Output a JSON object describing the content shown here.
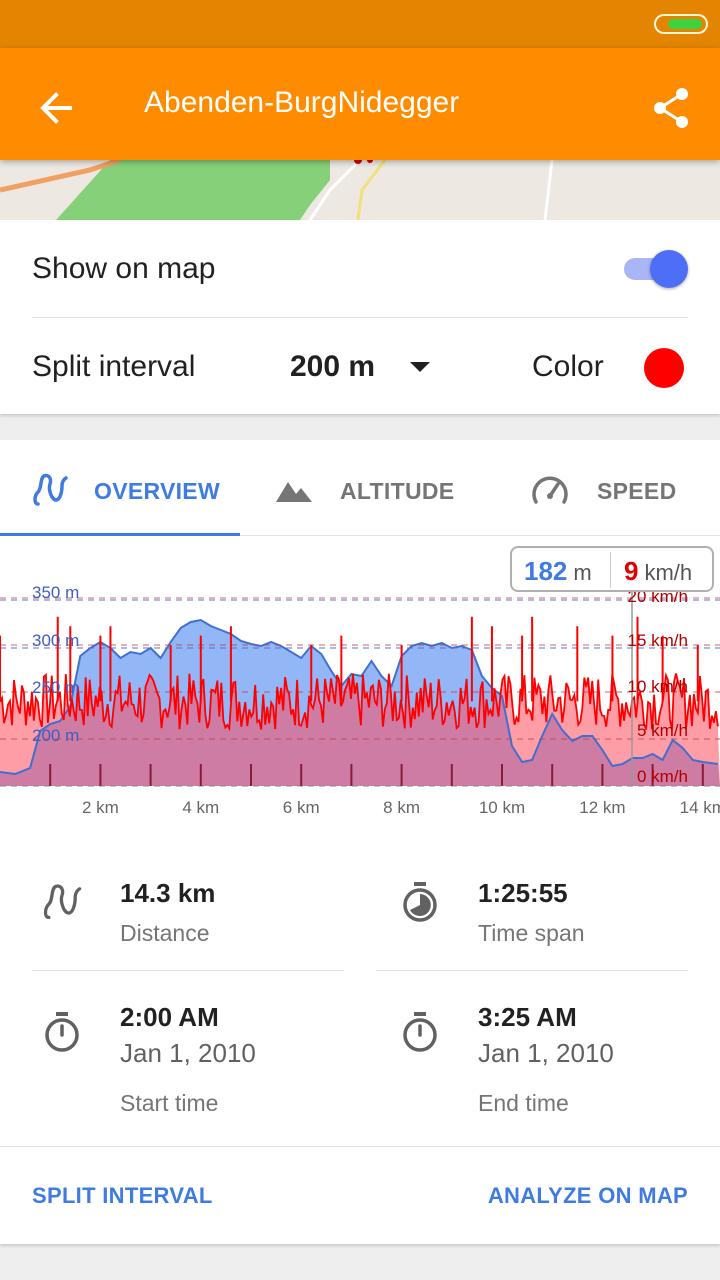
{
  "toolbar": {
    "title": "Abenden-BurgNidegger",
    "back_icon": "arrow-back-icon",
    "share_icon": "share-icon"
  },
  "settings": {
    "show_on_map_label": "Show on map",
    "show_on_map_enabled": true,
    "split_interval_label": "Split interval",
    "split_interval_value": "200 m",
    "color_label": "Color",
    "color_value": "#ff0000"
  },
  "tabs": [
    {
      "label": "OVERVIEW",
      "icon": "route-icon",
      "active": true
    },
    {
      "label": "ALTITUDE",
      "icon": "mountain-icon",
      "active": false
    },
    {
      "label": "SPEED",
      "icon": "speedometer-icon",
      "active": false
    }
  ],
  "readout": {
    "altitude_value": "182",
    "altitude_unit": "m",
    "speed_value": "9",
    "speed_unit": "km/h"
  },
  "chart_data": {
    "type": "area",
    "x_unit": "km",
    "x_range": [
      0,
      14.3
    ],
    "x_ticks": [
      "2 km",
      "4 km",
      "6 km",
      "8 km",
      "10 km",
      "12 km",
      "14 km"
    ],
    "y_left_ticks": [
      "350 m",
      "300 m",
      "250 m",
      "200 m"
    ],
    "y_right_ticks": [
      "20 km/h",
      "15 km/h",
      "10 km/h",
      "5 km/h",
      "0 km/h"
    ],
    "altitude_range": [
      160,
      360
    ],
    "speed_range": [
      0,
      20
    ],
    "altitude_color": "#5b8ff0",
    "speed_color": "#ff0000",
    "altitude": [
      [
        0,
        174
      ],
      [
        0.3,
        172
      ],
      [
        0.6,
        178
      ],
      [
        0.8,
        215
      ],
      [
        1.0,
        222
      ],
      [
        1.2,
        225
      ],
      [
        1.4,
        240
      ],
      [
        1.6,
        290
      ],
      [
        1.8,
        298
      ],
      [
        2.0,
        304
      ],
      [
        2.2,
        298
      ],
      [
        2.4,
        288
      ],
      [
        2.6,
        294
      ],
      [
        2.8,
        292
      ],
      [
        3.0,
        298
      ],
      [
        3.2,
        288
      ],
      [
        3.4,
        304
      ],
      [
        3.6,
        318
      ],
      [
        3.8,
        324
      ],
      [
        4.0,
        326
      ],
      [
        4.2,
        320
      ],
      [
        4.4,
        316
      ],
      [
        4.6,
        312
      ],
      [
        4.8,
        305
      ],
      [
        5.0,
        302
      ],
      [
        5.2,
        300
      ],
      [
        5.4,
        304
      ],
      [
        5.6,
        300
      ],
      [
        5.8,
        294
      ],
      [
        6.0,
        288
      ],
      [
        6.2,
        300
      ],
      [
        6.4,
        292
      ],
      [
        6.6,
        275
      ],
      [
        6.8,
        260
      ],
      [
        7.0,
        272
      ],
      [
        7.2,
        270
      ],
      [
        7.4,
        285
      ],
      [
        7.6,
        270
      ],
      [
        7.8,
        260
      ],
      [
        8.0,
        290
      ],
      [
        8.2,
        300
      ],
      [
        8.4,
        303
      ],
      [
        8.6,
        300
      ],
      [
        8.8,
        303
      ],
      [
        9.0,
        298
      ],
      [
        9.2,
        300
      ],
      [
        9.4,
        296
      ],
      [
        9.6,
        270
      ],
      [
        9.8,
        258
      ],
      [
        10.0,
        250
      ],
      [
        10.2,
        200
      ],
      [
        10.4,
        184
      ],
      [
        10.6,
        186
      ],
      [
        10.8,
        210
      ],
      [
        11.0,
        232
      ],
      [
        11.2,
        216
      ],
      [
        11.4,
        205
      ],
      [
        11.6,
        210
      ],
      [
        11.8,
        210
      ],
      [
        12.0,
        196
      ],
      [
        12.2,
        180
      ],
      [
        12.4,
        182
      ],
      [
        12.6,
        188
      ],
      [
        12.8,
        188
      ],
      [
        13.0,
        192
      ],
      [
        13.2,
        186
      ],
      [
        13.4,
        206
      ],
      [
        13.6,
        198
      ],
      [
        13.8,
        186
      ],
      [
        14.0,
        184
      ],
      [
        14.3,
        182
      ]
    ],
    "speed_baseline_kmh": 9,
    "speed_spread_kmh": 3,
    "speed_spikes": [
      [
        0,
        16
      ],
      [
        1.15,
        18
      ],
      [
        1.4,
        17
      ],
      [
        2.0,
        16
      ],
      [
        2.2,
        17
      ],
      [
        3.4,
        15
      ],
      [
        4.0,
        16
      ],
      [
        4.6,
        17
      ],
      [
        6.2,
        15
      ],
      [
        6.8,
        16
      ],
      [
        8.0,
        15
      ],
      [
        9.4,
        18
      ],
      [
        9.8,
        17
      ],
      [
        10.4,
        16
      ],
      [
        10.6,
        18
      ],
      [
        11.5,
        17
      ],
      [
        12.2,
        16
      ],
      [
        12.7,
        18
      ],
      [
        13.2,
        16
      ],
      [
        13.9,
        15
      ]
    ],
    "dashed_levels_speed_kmh": [
      20,
      15,
      10,
      5,
      0
    ]
  },
  "stats": {
    "distance": {
      "value": "14.3 km",
      "label": "Distance",
      "icon": "route-icon"
    },
    "time_span": {
      "value": "1:25:55",
      "label": "Time span",
      "icon": "timer-half-icon"
    },
    "start": {
      "value": "2:00 AM",
      "date": "Jan 1, 2010",
      "label": "Start time",
      "icon": "stopwatch-icon"
    },
    "end": {
      "value": "3:25 AM",
      "date": "Jan 1, 2010",
      "label": "End time",
      "icon": "stopwatch-icon"
    }
  },
  "actions": {
    "split_interval": "SPLIT INTERVAL",
    "analyze_on_map": "ANALYZE ON MAP"
  }
}
